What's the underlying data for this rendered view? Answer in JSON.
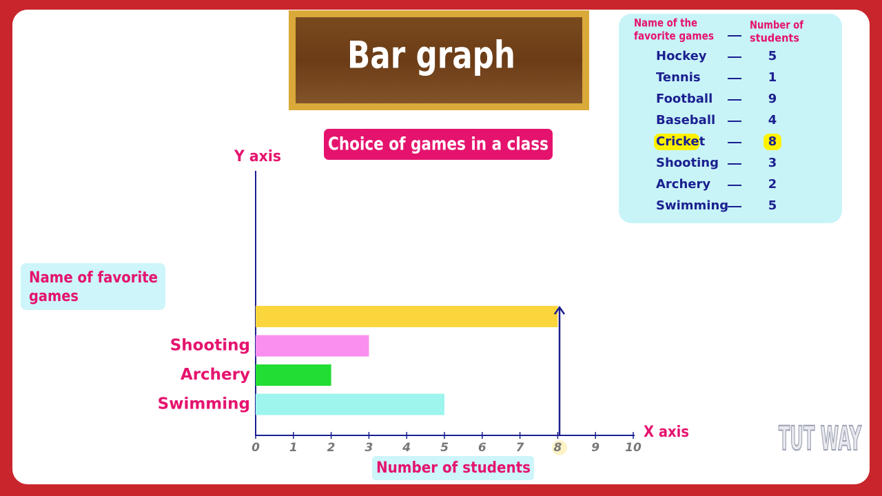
{
  "header": {
    "title": "Bar graph",
    "logo": "TUT WAY"
  },
  "table": {
    "name_header": [
      "Name of the",
      "favorite games"
    ],
    "count_header": [
      "Number of",
      "students"
    ],
    "rows": [
      [
        "Hockey",
        5
      ],
      [
        "Tennis",
        1
      ],
      [
        "Football",
        9
      ],
      [
        "Baseball",
        4
      ],
      [
        "Cricket",
        8
      ],
      [
        "Shooting",
        3
      ],
      [
        "Archery",
        2
      ],
      [
        "Swimming",
        5
      ]
    ]
  },
  "chart_data": {
    "type": "bar",
    "orientation": "horizontal",
    "title": "Choice of games in a class",
    "y_axis_label": "Y axis",
    "x_axis_label": "X axis",
    "y_title": [
      "Name of favorite",
      "games"
    ],
    "x_title": "Number of students",
    "categories": [
      "Swimming",
      "Archery",
      "Shooting",
      null
    ],
    "values": [
      5,
      2,
      3,
      8
    ],
    "colors": [
      "#9ef5ee",
      "#22dd33",
      "#fa8ff0",
      "#fad63c"
    ],
    "xlim": [
      0,
      10
    ],
    "xticks": [
      0,
      1,
      2,
      3,
      4,
      5,
      6,
      7,
      8,
      9,
      10
    ]
  }
}
